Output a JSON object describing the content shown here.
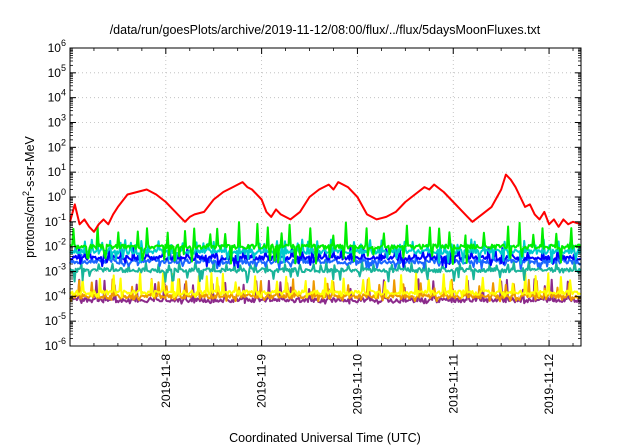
{
  "chart_data": {
    "type": "line",
    "title": "/data/run/goesPlots/archive/2019-11-12/08:00/flux/../flux/5daysMoonFluxes.txt",
    "xlabel": "Coordinated Universal Time (UTC)",
    "ylabel_main": "protons/cm",
    "ylabel_sup": "2",
    "ylabel_rest": "-s-sr-MeV",
    "y_scale": "log",
    "ylim_exponents": [
      -6,
      6
    ],
    "y_tick_base": "10",
    "y_tick_exponents": [
      "-6",
      "-5",
      "-4",
      "-3",
      "-2",
      "-1",
      "0",
      "1",
      "2",
      "3",
      "4",
      "5",
      "6"
    ],
    "x_range_days": [
      "2019-11-07T00:00",
      "2019-11-12T08:00"
    ],
    "x_ticks": [
      {
        "label": "2019-11-8",
        "date": "2019-11-08"
      },
      {
        "label": "2019-11-9",
        "date": "2019-11-09"
      },
      {
        "label": "2019-11-10",
        "date": "2019-11-10"
      },
      {
        "label": "2019-11-11",
        "date": "2019-11-11"
      },
      {
        "label": "2019-11-12",
        "date": "2019-11-12"
      }
    ],
    "grid": true,
    "series": [
      {
        "color": "#ff0000",
        "log10_values": [
          [
            0.0,
            -1.0
          ],
          [
            0.05,
            -0.3
          ],
          [
            0.1,
            -1.1
          ],
          [
            0.15,
            -0.9
          ],
          [
            0.2,
            -1.2
          ],
          [
            0.25,
            -1.4
          ],
          [
            0.3,
            -1.1
          ],
          [
            0.35,
            -0.9
          ],
          [
            0.4,
            -1.1
          ],
          [
            0.45,
            -0.7
          ],
          [
            0.5,
            -0.4
          ],
          [
            0.6,
            0.1
          ],
          [
            0.7,
            0.2
          ],
          [
            0.8,
            0.3
          ],
          [
            0.9,
            0.1
          ],
          [
            1.0,
            -0.2
          ],
          [
            1.1,
            -0.6
          ],
          [
            1.15,
            -0.8
          ],
          [
            1.2,
            -1.0
          ],
          [
            1.25,
            -0.8
          ],
          [
            1.3,
            -0.7
          ],
          [
            1.4,
            -0.6
          ],
          [
            1.5,
            -0.1
          ],
          [
            1.6,
            0.2
          ],
          [
            1.7,
            0.4
          ],
          [
            1.8,
            0.6
          ],
          [
            1.85,
            0.4
          ],
          [
            1.9,
            0.3
          ],
          [
            2.0,
            -0.1
          ],
          [
            2.05,
            -0.6
          ],
          [
            2.1,
            -0.8
          ],
          [
            2.15,
            -0.5
          ],
          [
            2.2,
            -0.7
          ],
          [
            2.3,
            -0.9
          ],
          [
            2.4,
            -0.6
          ],
          [
            2.5,
            0.0
          ],
          [
            2.6,
            0.3
          ],
          [
            2.7,
            0.5
          ],
          [
            2.75,
            0.3
          ],
          [
            2.8,
            0.6
          ],
          [
            2.9,
            0.4
          ],
          [
            3.0,
            0.0
          ],
          [
            3.1,
            -0.7
          ],
          [
            3.2,
            -0.9
          ],
          [
            3.3,
            -0.8
          ],
          [
            3.4,
            -0.6
          ],
          [
            3.5,
            -0.2
          ],
          [
            3.6,
            0.1
          ],
          [
            3.7,
            0.4
          ],
          [
            3.75,
            0.3
          ],
          [
            3.8,
            0.5
          ],
          [
            3.9,
            0.2
          ],
          [
            4.0,
            -0.2
          ],
          [
            4.1,
            -0.6
          ],
          [
            4.15,
            -0.8
          ],
          [
            4.2,
            -1.0
          ],
          [
            4.3,
            -0.7
          ],
          [
            4.4,
            -0.4
          ],
          [
            4.5,
            0.3
          ],
          [
            4.55,
            0.9
          ],
          [
            4.6,
            0.7
          ],
          [
            4.65,
            0.4
          ],
          [
            4.7,
            0.0
          ],
          [
            4.75,
            -0.4
          ],
          [
            4.8,
            -0.3
          ],
          [
            4.85,
            -0.7
          ],
          [
            4.9,
            -0.9
          ],
          [
            4.95,
            -0.6
          ],
          [
            5.0,
            -1.1
          ],
          [
            5.05,
            -0.9
          ],
          [
            5.1,
            -1.2
          ],
          [
            5.15,
            -0.9
          ],
          [
            5.2,
            -1.1
          ],
          [
            5.25,
            -1.0
          ],
          [
            5.333,
            -1.1
          ]
        ]
      },
      {
        "color": "#00ee00",
        "base_log10": -2.0,
        "spike_log10": 1.0,
        "floor_log10": -0.7,
        "period_days": 0.05,
        "seed": 3
      },
      {
        "color": "#00cccc",
        "base_log10": -2.2,
        "spike_log10": 0.5,
        "floor_log10": -0.5,
        "period_days": 0.03,
        "seed": 7
      },
      {
        "color": "#0000ff",
        "base_log10": -2.45,
        "spike_log10": 0.45,
        "floor_log10": -0.4,
        "period_days": 0.035,
        "seed": 11
      },
      {
        "color": "#1a66ff",
        "base_log10": -2.6,
        "spike_log10": 0.3,
        "floor_log10": -0.3,
        "period_days": 0.04,
        "seed": 17
      },
      {
        "color": "#18b49a",
        "base_log10": -2.95,
        "spike_log10": 0.4,
        "floor_log10": -0.5,
        "period_days": 0.04,
        "seed": 23
      },
      {
        "color": "#ffff00",
        "base_log10": -3.85,
        "spike_log10": 0.8,
        "floor_log10": -0.2,
        "period_days": 0.045,
        "seed": 29
      },
      {
        "color": "#ee9900",
        "base_log10": -4.0,
        "spike_log10": 0.7,
        "floor_log10": -0.2,
        "period_days": 0.045,
        "seed": 31
      },
      {
        "color": "#8b2a8b",
        "base_log10": -4.15,
        "spike_log10": 0.85,
        "floor_log10": -0.15,
        "period_days": 0.045,
        "seed": 37
      }
    ]
  }
}
